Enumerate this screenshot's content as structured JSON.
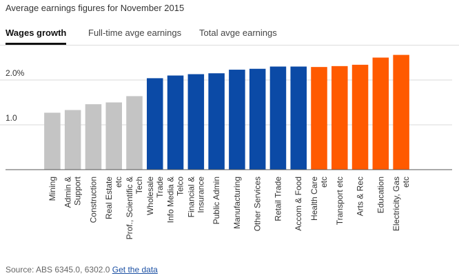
{
  "header": {
    "title": "Average earnings figures for November 2015"
  },
  "tabs": [
    {
      "label": "Wages growth",
      "active": true
    },
    {
      "label": "Full-time avge earnings",
      "active": false
    },
    {
      "label": "Total avge earnings",
      "active": false
    }
  ],
  "footer": {
    "source_text": "Source: ABS 6345.0, 6302.0",
    "link_label": "Get the data"
  },
  "colors": {
    "grey": "#c4c4c4",
    "blue": "#0b4aa6",
    "orange": "#ff5a00",
    "grid": "#d9d9d9",
    "axis": "#555555"
  },
  "chart_data": {
    "type": "bar",
    "categories": [
      "Mining",
      "Admin & Support",
      "Construction",
      "Real Estate etc",
      "Prof., Scientific & Tech",
      "Wholesale Trade",
      "Info Media & Telco",
      "Financial & Insurance",
      "Public Admin",
      "Manufacturing",
      "Other Services",
      "Retail Trade",
      "Accom & Food",
      "Health Care etc",
      "Transport etc",
      "Arts & Rec",
      "Education",
      "Electricity, Gas etc"
    ],
    "values": [
      1.27,
      1.33,
      1.46,
      1.5,
      1.64,
      2.04,
      2.1,
      2.13,
      2.15,
      2.23,
      2.25,
      2.3,
      2.3,
      2.29,
      2.31,
      2.34,
      2.5,
      2.56
    ],
    "bar_colors": [
      "grey",
      "grey",
      "grey",
      "grey",
      "grey",
      "blue",
      "blue",
      "blue",
      "blue",
      "blue",
      "blue",
      "blue",
      "blue",
      "orange",
      "orange",
      "orange",
      "orange",
      "orange"
    ],
    "yticks": [
      {
        "value": 1.0,
        "label": "1.0"
      },
      {
        "value": 2.0,
        "label": "2.0%"
      }
    ],
    "ylim": [
      0,
      2.65
    ],
    "grid": true,
    "title": "",
    "xlabel": "",
    "ylabel": ""
  }
}
